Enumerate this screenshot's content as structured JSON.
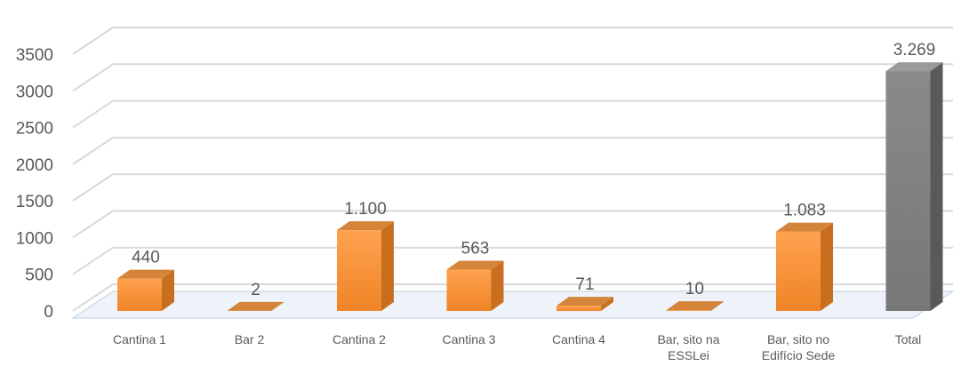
{
  "chart_data": {
    "type": "bar",
    "title": "",
    "xlabel": "",
    "ylabel": "",
    "ylim": [
      0,
      3500
    ],
    "yticks": [
      0,
      500,
      1000,
      1500,
      2000,
      2500,
      3000,
      3500
    ],
    "ytick_labels": [
      "0",
      "500",
      "1000",
      "1500",
      "2000",
      "2500",
      "3000",
      "3500"
    ],
    "grid": true,
    "style": "3d-column",
    "categories": [
      [
        "Cantina 1"
      ],
      [
        "Bar 2"
      ],
      [
        "Cantina 2"
      ],
      [
        "Cantina 3"
      ],
      [
        "Cantina 4"
      ],
      [
        "Bar, sito na",
        "ESSLei"
      ],
      [
        "Bar, sito no",
        "Edifício Sede"
      ],
      [
        "Total"
      ]
    ],
    "values": [
      440,
      2,
      1100,
      563,
      71,
      10,
      1083,
      3269
    ],
    "data_labels": [
      "440",
      "2",
      "1.100",
      "563",
      "71",
      "10",
      "1.083",
      "3.269"
    ],
    "colors": {
      "orange_front": "#f58d2f",
      "orange_side": "#c76f1f",
      "orange_top": "#d4853a",
      "gray_front": "#7f7f7f",
      "gray_side": "#595959",
      "gray_top": "#9a9a9a"
    }
  }
}
